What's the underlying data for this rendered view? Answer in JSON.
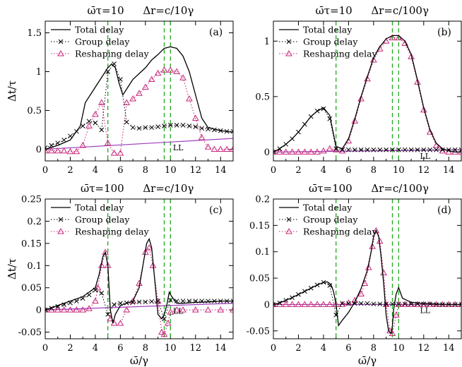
{
  "figure": {
    "legend_labels": [
      "Total delay",
      "Group delay",
      "Reshaping delay"
    ],
    "colors": {
      "total": "#000000",
      "group": "#000000",
      "reshaping": "#c8287a",
      "marker": "#c8287a",
      "ll": "#a040c0",
      "vline": "#22aa22"
    }
  },
  "chart_data": [
    {
      "type": "line",
      "panel_label": "(a)",
      "title_left": "ω̄τ=10",
      "title_right": "Δr=c/10γ",
      "xlabel": "",
      "ylabel": "Δt/τ",
      "xlim": [
        0,
        15
      ],
      "ylim": [
        -0.15,
        1.65
      ],
      "xticks": [
        "0",
        "2",
        "4",
        "6",
        "8",
        "10",
        "12",
        "14"
      ],
      "yticks": [
        "0",
        "0.5",
        "1",
        "1.5"
      ],
      "vlines": [
        5,
        9.5,
        10
      ],
      "ll_label": "LL",
      "ll_line": {
        "x": [
          0,
          15
        ],
        "y": [
          0.0,
          0.14
        ]
      },
      "series": [
        {
          "name": "Total delay",
          "x": [
            0,
            1,
            2,
            2.8,
            3.2,
            4,
            4.6,
            5,
            5.3,
            5.6,
            5.9,
            6.2,
            6.6,
            7,
            8,
            8.5,
            9,
            9.5,
            10,
            10.5,
            11,
            11.5,
            12,
            12.5,
            13,
            14,
            15
          ],
          "y": [
            0.0,
            0.05,
            0.12,
            0.3,
            0.6,
            0.8,
            0.95,
            1.05,
            1.1,
            1.05,
            0.85,
            0.7,
            0.8,
            0.9,
            1.05,
            1.15,
            1.22,
            1.3,
            1.32,
            1.3,
            1.2,
            1.0,
            0.7,
            0.4,
            0.28,
            0.24,
            0.22
          ]
        },
        {
          "name": "Group delay",
          "x": [
            0,
            0.5,
            1,
            1.5,
            2,
            2.5,
            3,
            3.5,
            4,
            4.5,
            5,
            5.5,
            6,
            6.5,
            7,
            7.5,
            8,
            8.5,
            9,
            9.5,
            10,
            10.5,
            11,
            11.5,
            12,
            12.5,
            13,
            13.5,
            14,
            14.5,
            15
          ],
          "y": [
            0.02,
            0.05,
            0.08,
            0.12,
            0.17,
            0.23,
            0.3,
            0.36,
            0.34,
            0.25,
            1.0,
            1.1,
            0.9,
            0.35,
            0.28,
            0.27,
            0.28,
            0.28,
            0.29,
            0.3,
            0.31,
            0.31,
            0.31,
            0.3,
            0.29,
            0.27,
            0.26,
            0.25,
            0.24,
            0.23,
            0.23
          ]
        },
        {
          "name": "Reshaping delay",
          "x": [
            0,
            0.5,
            1,
            1.5,
            2,
            2.5,
            3,
            3.5,
            4,
            4.5,
            5,
            5.5,
            6,
            6.5,
            7,
            7.5,
            8,
            8.5,
            9,
            9.5,
            10,
            10.5,
            11,
            11.5,
            12,
            12.5,
            13,
            13.5,
            14,
            14.5,
            15
          ],
          "y": [
            -0.02,
            -0.02,
            -0.02,
            -0.02,
            -0.03,
            -0.03,
            0.05,
            0.3,
            0.45,
            0.6,
            0.08,
            -0.05,
            -0.05,
            0.6,
            0.65,
            0.72,
            0.8,
            0.9,
            0.98,
            1.02,
            1.02,
            1.0,
            0.92,
            0.65,
            0.4,
            0.15,
            0.03,
            0.0,
            0.0,
            0.0,
            0.0
          ]
        }
      ]
    },
    {
      "type": "line",
      "panel_label": "(b)",
      "title_left": "ω̄τ=10",
      "title_right": "Δr=c/100γ",
      "xlabel": "",
      "ylabel": "",
      "xlim": [
        0,
        15
      ],
      "ylim": [
        -0.08,
        1.18
      ],
      "xticks": [
        "0",
        "2",
        "4",
        "6",
        "8",
        "10",
        "12",
        "14"
      ],
      "yticks": [
        "0",
        "0.5",
        "1"
      ],
      "vlines": [
        5,
        9.5,
        10
      ],
      "ll_label": "LL",
      "ll_line": {
        "x": [
          0,
          15
        ],
        "y": [
          0.0,
          0.02
        ]
      },
      "series": [
        {
          "name": "Total delay",
          "x": [
            0,
            0.5,
            1,
            1.5,
            2,
            2.5,
            3,
            3.5,
            4,
            4.5,
            5,
            5.5,
            6,
            6.5,
            7,
            7.5,
            8,
            8.5,
            9,
            9.5,
            10,
            10.5,
            11,
            11.5,
            12,
            12.5,
            13,
            13.5,
            14,
            14.5,
            15
          ],
          "y": [
            0.0,
            0.03,
            0.07,
            0.12,
            0.18,
            0.25,
            0.32,
            0.37,
            0.4,
            0.33,
            0.05,
            0.03,
            0.12,
            0.3,
            0.5,
            0.68,
            0.85,
            0.95,
            1.02,
            1.05,
            1.05,
            1.0,
            0.88,
            0.65,
            0.4,
            0.2,
            0.08,
            0.03,
            0.01,
            0.0,
            0.0
          ]
        },
        {
          "name": "Group delay",
          "x": [
            0,
            0.5,
            1,
            1.5,
            2,
            2.5,
            3,
            3.5,
            4,
            4.5,
            5,
            5.5,
            6,
            6.5,
            7,
            7.5,
            8,
            8.5,
            9,
            9.5,
            10,
            10.5,
            11,
            11.5,
            12,
            12.5,
            13,
            13.5,
            14,
            14.5,
            15
          ],
          "y": [
            0.0,
            0.03,
            0.07,
            0.12,
            0.18,
            0.25,
            0.32,
            0.37,
            0.39,
            0.3,
            0.03,
            0.02,
            0.02,
            0.02,
            0.02,
            0.02,
            0.02,
            0.02,
            0.02,
            0.02,
            0.02,
            0.02,
            0.02,
            0.02,
            0.02,
            0.02,
            0.02,
            0.02,
            0.02,
            0.02,
            0.02
          ]
        },
        {
          "name": "Reshaping delay",
          "x": [
            0,
            0.5,
            1,
            1.5,
            2,
            2.5,
            3,
            3.5,
            4,
            4.5,
            5,
            5.5,
            6,
            6.5,
            7,
            7.5,
            8,
            8.5,
            9,
            9.5,
            10,
            10.5,
            11,
            11.5,
            12,
            12.5,
            13,
            13.5,
            14,
            14.5,
            15
          ],
          "y": [
            0.0,
            0.0,
            0.0,
            0.0,
            0.0,
            0.0,
            0.0,
            0.0,
            0.01,
            0.03,
            0.02,
            0.01,
            0.1,
            0.28,
            0.48,
            0.66,
            0.83,
            0.93,
            1.0,
            1.03,
            1.03,
            0.98,
            0.86,
            0.63,
            0.38,
            0.18,
            0.06,
            0.01,
            0.0,
            0.0,
            0.0
          ]
        }
      ]
    },
    {
      "type": "line",
      "panel_label": "(c)",
      "title_left": "ω̄τ=100",
      "title_right": "Δr=c/10γ",
      "xlabel": "ω̄/γ",
      "ylabel": "Δt/τ",
      "xlim": [
        0,
        15
      ],
      "ylim": [
        -0.065,
        0.25
      ],
      "xticks": [
        "0",
        "2",
        "4",
        "6",
        "8",
        "10",
        "12",
        "14"
      ],
      "yticks": [
        "-0.05",
        "0",
        "0.05",
        "0.1",
        "0.15",
        "0.2",
        "0.25"
      ],
      "vlines": [
        5,
        9.5,
        10
      ],
      "ll_label": "LL",
      "ll_line": {
        "x": [
          0,
          15
        ],
        "y": [
          0.0,
          0.015
        ]
      },
      "series": [
        {
          "name": "Total delay",
          "x": [
            0,
            1,
            2,
            3,
            3.5,
            4,
            4.3,
            4.6,
            4.8,
            5.0,
            5.2,
            5.4,
            5.6,
            6,
            7,
            7.5,
            7.8,
            8.1,
            8.3,
            8.5,
            8.8,
            9.0,
            9.3,
            9.5,
            9.7,
            9.9,
            10.1,
            10.5,
            11,
            12,
            13,
            14,
            15
          ],
          "y": [
            0.0,
            0.01,
            0.02,
            0.03,
            0.04,
            0.05,
            0.08,
            0.12,
            0.13,
            0.1,
            0.0,
            -0.03,
            -0.01,
            0.01,
            0.02,
            0.05,
            0.1,
            0.15,
            0.16,
            0.14,
            0.05,
            -0.01,
            -0.02,
            -0.01,
            0.01,
            0.04,
            0.03,
            0.015,
            0.015,
            0.017,
            0.018,
            0.02,
            0.02
          ]
        },
        {
          "name": "Group delay",
          "x": [
            0,
            0.5,
            1,
            1.5,
            2,
            2.5,
            3,
            3.5,
            4,
            4.5,
            5,
            5.5,
            6,
            6.5,
            7,
            7.5,
            8,
            8.5,
            9,
            9.5,
            10,
            10.5,
            11,
            11.5,
            12,
            12.5,
            13,
            13.5,
            14,
            14.5,
            15
          ],
          "y": [
            0.0,
            0.004,
            0.008,
            0.012,
            0.016,
            0.02,
            0.026,
            0.034,
            0.045,
            0.038,
            -0.01,
            0.012,
            0.015,
            0.016,
            0.017,
            0.018,
            0.018,
            0.019,
            0.02,
            -0.02,
            0.022,
            0.02,
            0.02,
            0.02,
            0.02,
            0.02,
            0.02,
            0.02,
            0.02,
            0.02,
            0.02
          ]
        },
        {
          "name": "Reshaping delay",
          "x": [
            0,
            0.5,
            1,
            1.5,
            2,
            2.5,
            3,
            3.5,
            4,
            4.2,
            4.5,
            4.8,
            5,
            5.2,
            5.5,
            6,
            6.5,
            7,
            7.5,
            8,
            8.3,
            8.6,
            9,
            9.3,
            9.5,
            9.8,
            10,
            10.5,
            11,
            12,
            13,
            14,
            15
          ],
          "y": [
            0.0,
            0.0,
            0.0,
            0.0,
            0.0,
            0.0,
            0.0,
            0.003,
            0.02,
            0.05,
            0.1,
            0.13,
            0.1,
            -0.02,
            -0.03,
            -0.03,
            0.0,
            0.02,
            0.06,
            0.13,
            0.14,
            0.1,
            0.02,
            -0.05,
            -0.055,
            -0.03,
            -0.005,
            0.0,
            0.0,
            0.0,
            0.0,
            0.0,
            0.0
          ]
        }
      ]
    },
    {
      "type": "line",
      "panel_label": "(d)",
      "title_left": "ω̄τ=100",
      "title_right": "Δr=c/100γ",
      "xlabel": "ω̄/γ",
      "ylabel": "",
      "xlim": [
        0,
        15
      ],
      "ylim": [
        -0.065,
        0.2
      ],
      "xticks": [
        "0",
        "2",
        "4",
        "6",
        "8",
        "10",
        "12",
        "14"
      ],
      "yticks": [
        "-0.05",
        "0",
        "0.05",
        "0.1",
        "0.15",
        "0.2"
      ],
      "vlines": [
        5,
        9.5,
        10
      ],
      "ll_label": "LL",
      "ll_line": {
        "x": [
          0,
          15
        ],
        "y": [
          0.0,
          0.0
        ]
      },
      "series": [
        {
          "name": "Total delay",
          "x": [
            0,
            0.5,
            1,
            1.5,
            2,
            2.5,
            3,
            3.5,
            4,
            4.3,
            4.6,
            4.8,
            5.0,
            5.2,
            5.5,
            6,
            6.5,
            7,
            7.5,
            7.8,
            8.0,
            8.2,
            8.4,
            8.6,
            8.8,
            9.0,
            9.2,
            9.4,
            9.5,
            9.6,
            9.8,
            10.0,
            10.3,
            11,
            12,
            13,
            14,
            15
          ],
          "y": [
            0.0,
            0.003,
            0.008,
            0.013,
            0.019,
            0.025,
            0.031,
            0.037,
            0.042,
            0.043,
            0.038,
            0.025,
            0.0,
            -0.04,
            -0.03,
            -0.015,
            0.005,
            0.03,
            0.065,
            0.1,
            0.13,
            0.14,
            0.13,
            0.09,
            0.04,
            -0.02,
            -0.05,
            -0.055,
            -0.04,
            -0.01,
            0.02,
            0.032,
            0.012,
            0.004,
            0.002,
            0.001,
            0.0,
            0.0
          ]
        },
        {
          "name": "Group delay",
          "x": [
            0,
            0.5,
            1,
            1.5,
            2,
            2.5,
            3,
            3.5,
            4,
            4.5,
            5,
            5.5,
            6,
            6.5,
            7,
            7.5,
            8,
            8.5,
            9,
            9.5,
            10,
            10.5,
            11,
            11.5,
            12,
            12.5,
            13,
            13.5,
            14,
            14.5,
            15
          ],
          "y": [
            0.0,
            0.003,
            0.008,
            0.013,
            0.019,
            0.025,
            0.031,
            0.037,
            0.042,
            0.036,
            -0.02,
            0.002,
            0.002,
            0.002,
            0.002,
            0.002,
            0.001,
            0.001,
            0.001,
            0.001,
            0.001,
            0.001,
            0.001,
            0.001,
            0.001,
            0.001,
            0.0,
            0.0,
            0.0,
            0.0,
            0.0
          ]
        },
        {
          "name": "Reshaping delay",
          "x": [
            0,
            0.5,
            1,
            1.5,
            2,
            2.5,
            3,
            3.5,
            4,
            4.5,
            5,
            5.5,
            6,
            6.5,
            7,
            7.3,
            7.6,
            7.9,
            8.2,
            8.5,
            8.8,
            9.0,
            9.3,
            9.5,
            9.8,
            10,
            10.5,
            11,
            11.5,
            12,
            12.5,
            13,
            13.5,
            14,
            14.5,
            15
          ],
          "y": [
            0.0,
            0.0,
            0.0,
            0.0,
            0.0,
            0.0,
            0.0,
            0.0,
            0.0,
            0.0,
            0.0,
            0.0,
            0.003,
            0.008,
            0.02,
            0.04,
            0.07,
            0.11,
            0.14,
            0.12,
            0.06,
            0.0,
            -0.05,
            -0.055,
            -0.02,
            0.0,
            0.0,
            0.0,
            0.0,
            0.0,
            0.0,
            0.0,
            0.0,
            0.0,
            0.0,
            0.0
          ]
        }
      ]
    }
  ]
}
